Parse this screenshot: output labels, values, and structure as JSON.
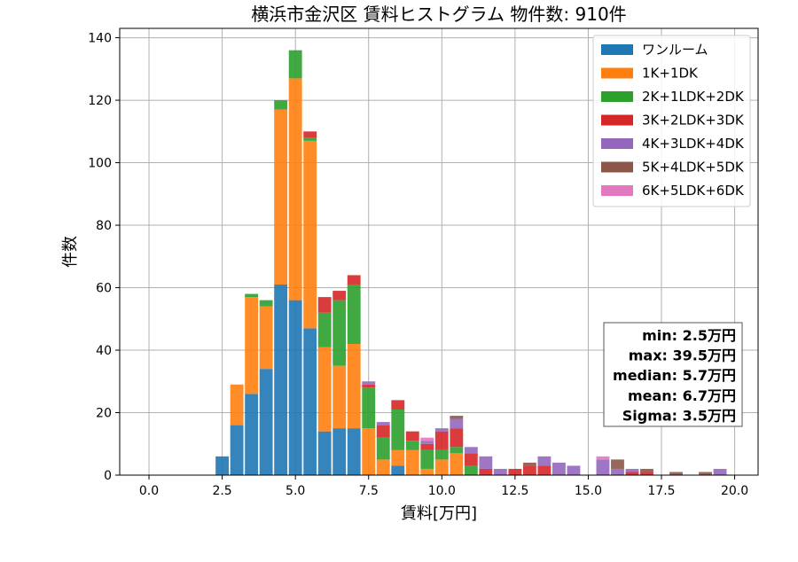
{
  "chart_data": {
    "type": "bar",
    "stacked": true,
    "title": "横浜市金沢区 賃料ヒストグラム 物件数: 910件",
    "xlabel": "賃料[万円]",
    "ylabel": "件数",
    "xlim": [
      -1.0,
      20.8
    ],
    "ylim": [
      0,
      143
    ],
    "xticks": [
      0.0,
      2.5,
      5.0,
      7.5,
      10.0,
      12.5,
      15.0,
      17.5,
      20.0
    ],
    "xtick_labels": [
      "0.0",
      "2.5",
      "5.0",
      "7.5",
      "10.0",
      "12.5",
      "15.0",
      "17.5",
      "20.0"
    ],
    "yticks": [
      0,
      20,
      40,
      60,
      80,
      100,
      120,
      140
    ],
    "ytick_labels": [
      "0",
      "20",
      "40",
      "60",
      "80",
      "100",
      "120",
      "140"
    ],
    "grid": true,
    "legend_position": "top-right",
    "bin_width": 0.5,
    "x": [
      2.5,
      3.0,
      3.5,
      4.0,
      4.5,
      5.0,
      5.5,
      6.0,
      6.5,
      7.0,
      7.5,
      8.0,
      8.5,
      9.0,
      9.5,
      10.0,
      10.5,
      11.0,
      11.5,
      12.0,
      12.5,
      13.0,
      13.5,
      14.0,
      14.5,
      15.0,
      15.5,
      16.0,
      16.5,
      17.0,
      17.5,
      18.0,
      18.5,
      19.0,
      19.5,
      20.0
    ],
    "series": [
      {
        "name": "ワンルーム",
        "color": "#1f77b4",
        "values": [
          6,
          16,
          26,
          34,
          61,
          56,
          47,
          14,
          15,
          15,
          0,
          0,
          3,
          0,
          0,
          0,
          0,
          0,
          0,
          0,
          0,
          0,
          0,
          0,
          0,
          0,
          0,
          0,
          0,
          0,
          0,
          0,
          0,
          0,
          0,
          0
        ]
      },
      {
        "name": "1K+1DK",
        "color": "#ff7f0e",
        "values": [
          0,
          13,
          31,
          20,
          56,
          71,
          60,
          27,
          20,
          27,
          15,
          5,
          5,
          8,
          2,
          5,
          7,
          0,
          0,
          0,
          0,
          0,
          0,
          0,
          0,
          0,
          0,
          0,
          0,
          0,
          0,
          0,
          0,
          0,
          0,
          0
        ]
      },
      {
        "name": "2K+1LDK+2DK",
        "color": "#2ca02c",
        "values": [
          0,
          0,
          1,
          2,
          3,
          9,
          1,
          11,
          21,
          19,
          13,
          7,
          13,
          3,
          6,
          3,
          2,
          3,
          0,
          0,
          0,
          0,
          0,
          0,
          0,
          0,
          0,
          0,
          0,
          0,
          0,
          0,
          0,
          0,
          0,
          0
        ]
      },
      {
        "name": "3K+2LDK+3DK",
        "color": "#d62728",
        "values": [
          0,
          0,
          0,
          0,
          0,
          0,
          2,
          5,
          3,
          3,
          1,
          4,
          3,
          3,
          2,
          6,
          6,
          4,
          2,
          0,
          2,
          3,
          3,
          0,
          0,
          0,
          0,
          0,
          1,
          1,
          0,
          0,
          0,
          0,
          0,
          0
        ]
      },
      {
        "name": "4K+3LDK+4DK",
        "color": "#9467bd",
        "values": [
          0,
          0,
          0,
          0,
          0,
          0,
          0,
          0,
          0,
          0,
          1,
          1,
          0,
          0,
          1,
          1,
          3,
          2,
          4,
          2,
          0,
          0,
          3,
          4,
          3,
          0,
          5,
          2,
          1,
          0,
          0,
          0,
          0,
          0,
          2,
          0
        ]
      },
      {
        "name": "5K+4LDK+5DK",
        "color": "#8c564b",
        "values": [
          0,
          0,
          0,
          0,
          0,
          0,
          0,
          0,
          0,
          0,
          0,
          0,
          0,
          0,
          0,
          0,
          1,
          0,
          0,
          0,
          0,
          1,
          0,
          0,
          0,
          0,
          0,
          3,
          0,
          1,
          0,
          1,
          0,
          1,
          0,
          0
        ]
      },
      {
        "name": "6K+5LDK+6DK",
        "color": "#e377c2",
        "values": [
          0,
          0,
          0,
          0,
          0,
          0,
          0,
          0,
          0,
          0,
          0,
          0,
          0,
          0,
          1,
          0,
          0,
          0,
          0,
          0,
          0,
          0,
          0,
          0,
          0,
          0,
          1,
          0,
          0,
          0,
          0,
          0,
          0,
          0,
          0,
          0
        ]
      }
    ],
    "stats_box": {
      "lines": [
        "min: 2.5万円",
        "max: 39.5万円",
        "median: 5.7万円",
        "mean: 6.7万円",
        "Sigma: 3.5万円"
      ]
    }
  }
}
